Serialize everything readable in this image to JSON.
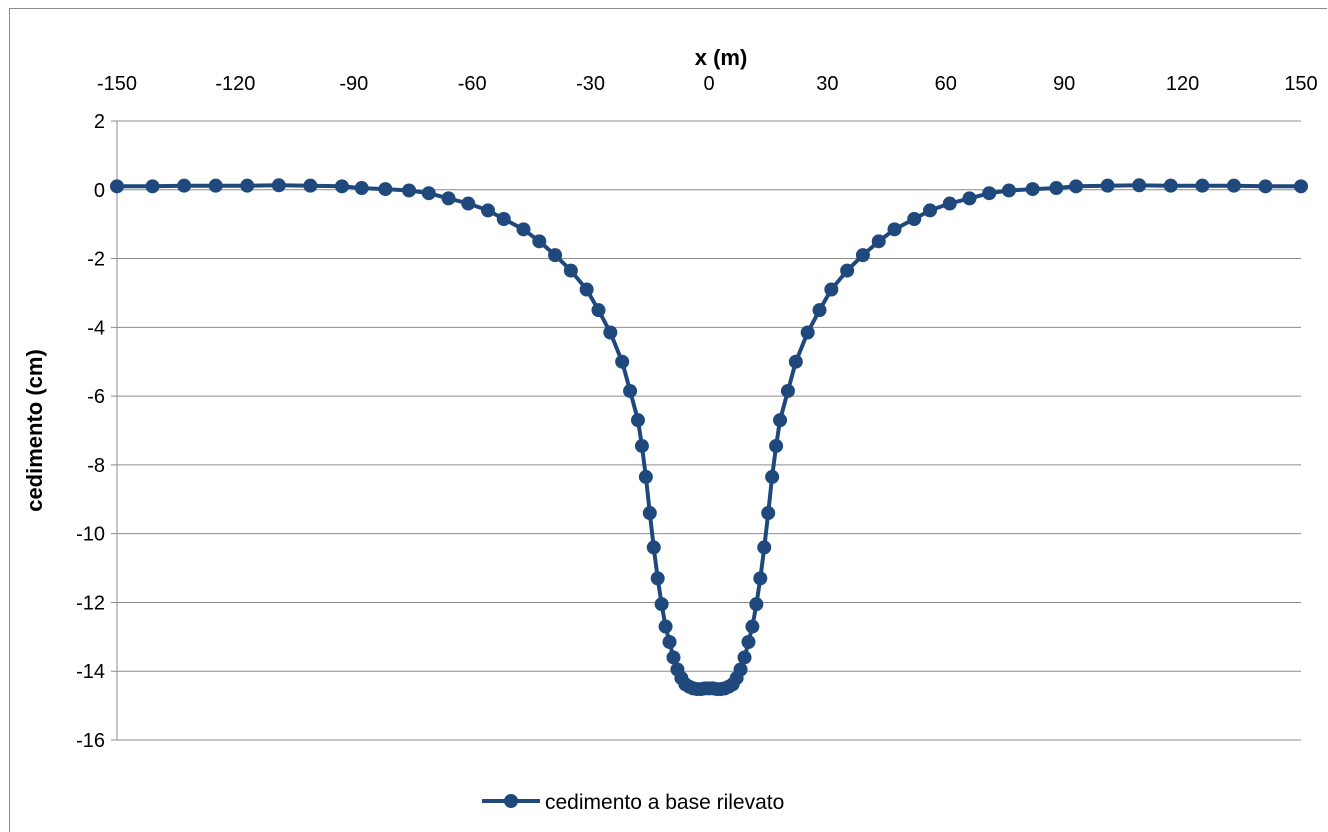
{
  "chart_data": {
    "type": "line",
    "title": "",
    "xlabel": "x (m)",
    "ylabel": "cedimento (cm)",
    "xlim": [
      -150,
      150
    ],
    "ylim": [
      -16,
      2
    ],
    "x_ticks": [
      -150,
      -120,
      -90,
      -60,
      -30,
      0,
      30,
      60,
      90,
      120,
      150
    ],
    "y_ticks": [
      2,
      0,
      -2,
      -4,
      -6,
      -8,
      -10,
      -12,
      -14,
      -16
    ],
    "x_axis_position": "top",
    "grid": "horizontal",
    "legend": "bottom-center",
    "color": "#1f497d",
    "series": [
      {
        "name": "cedimento a base rilevato",
        "x": [
          -150,
          -141,
          -133,
          -125,
          -117,
          -109,
          -101,
          -93,
          -88,
          -82,
          -76,
          -71,
          -66,
          -61,
          -56,
          -52,
          -47,
          -43,
          -39,
          -35,
          -31,
          -28,
          -25,
          -22,
          -20,
          -18,
          -17,
          -16,
          -15,
          -14,
          -13,
          -12,
          -11,
          -10,
          -9,
          -8,
          -7,
          -6,
          -5,
          -4,
          -3,
          -2,
          -1,
          0,
          1,
          2,
          3,
          4,
          5,
          6,
          7,
          8,
          9,
          10,
          11,
          12,
          13,
          14,
          15,
          16,
          17,
          18,
          20,
          22,
          25,
          28,
          31,
          35,
          39,
          43,
          47,
          52,
          56,
          61,
          66,
          71,
          76,
          82,
          88,
          93,
          101,
          109,
          117,
          125,
          133,
          141,
          150
        ],
        "values": [
          0.1,
          0.1,
          0.12,
          0.12,
          0.12,
          0.13,
          0.12,
          0.1,
          0.05,
          0.02,
          -0.02,
          -0.1,
          -0.25,
          -0.4,
          -0.6,
          -0.85,
          -1.15,
          -1.5,
          -1.9,
          -2.35,
          -2.9,
          -3.5,
          -4.15,
          -5.0,
          -5.85,
          -6.7,
          -7.45,
          -8.35,
          -9.4,
          -10.4,
          -11.3,
          -12.05,
          -12.7,
          -13.15,
          -13.6,
          -13.95,
          -14.2,
          -14.38,
          -14.45,
          -14.5,
          -14.52,
          -14.52,
          -14.5,
          -14.5,
          -14.5,
          -14.52,
          -14.52,
          -14.5,
          -14.45,
          -14.38,
          -14.2,
          -13.95,
          -13.6,
          -13.15,
          -12.7,
          -12.05,
          -11.3,
          -10.4,
          -9.4,
          -8.35,
          -7.45,
          -6.7,
          -5.85,
          -5.0,
          -4.15,
          -3.5,
          -2.9,
          -2.35,
          -1.9,
          -1.5,
          -1.15,
          -0.85,
          -0.6,
          -0.4,
          -0.25,
          -0.1,
          -0.02,
          0.02,
          0.05,
          0.1,
          0.12,
          0.13,
          0.12,
          0.12,
          0.12,
          0.1,
          0.1
        ]
      }
    ]
  }
}
